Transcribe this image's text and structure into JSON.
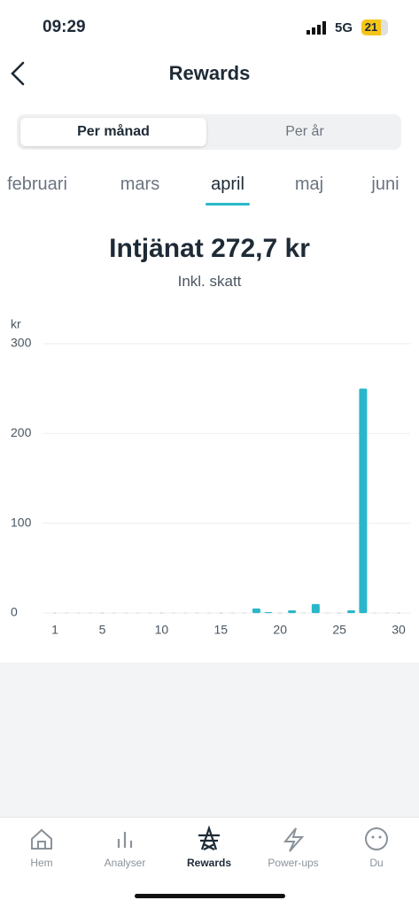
{
  "status_bar": {
    "time": "09:29",
    "network": "5G",
    "battery": "21"
  },
  "header": {
    "title": "Rewards"
  },
  "tabs": [
    "Per månad",
    "Per år"
  ],
  "months": [
    "februari",
    "mars",
    "april",
    "maj",
    "juni"
  ],
  "summary": {
    "title": "Intjänat 272,7 kr",
    "subtitle": "Inkl. skatt"
  },
  "chart_data": {
    "type": "bar",
    "y_label": "kr",
    "x": [
      1,
      2,
      3,
      4,
      5,
      6,
      7,
      8,
      9,
      10,
      11,
      12,
      13,
      14,
      15,
      16,
      17,
      18,
      19,
      20,
      21,
      22,
      23,
      24,
      25,
      26,
      27,
      28,
      29,
      30
    ],
    "values": [
      0,
      0,
      0,
      0,
      0,
      0,
      0,
      0,
      0,
      0,
      0,
      0,
      0,
      0,
      0,
      0,
      0,
      5,
      1,
      0,
      3,
      0,
      10,
      0,
      0,
      3,
      250,
      0,
      0,
      0
    ],
    "color": "#2ab7c9",
    "xlim": [
      0,
      31
    ],
    "xticks": [
      1,
      5,
      10,
      15,
      20,
      25,
      30
    ],
    "ylim": [
      0,
      300
    ],
    "yticks": [
      0,
      100,
      200,
      300
    ],
    "grid": true
  },
  "nav": [
    "Hem",
    "Analyser",
    "Rewards",
    "Power-ups",
    "Du"
  ]
}
